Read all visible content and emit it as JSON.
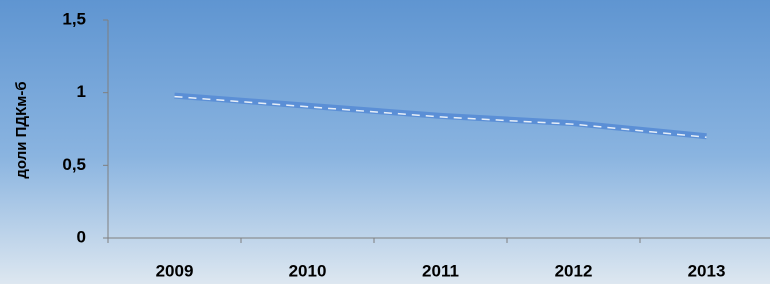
{
  "chart_data": {
    "type": "line",
    "y_label": "доли ПДКм-б",
    "categories": [
      "2009",
      "2010",
      "2011",
      "2012",
      "2013"
    ],
    "values": [
      0.98,
      0.91,
      0.84,
      0.79,
      0.7
    ],
    "color": "#5b8fd6",
    "ylim": [
      0,
      1.5
    ],
    "yticks": [
      0,
      {
        "value": 0.5,
        "label": "0,5"
      },
      1,
      {
        "value": 1.5,
        "label": "1,5"
      }
    ]
  }
}
